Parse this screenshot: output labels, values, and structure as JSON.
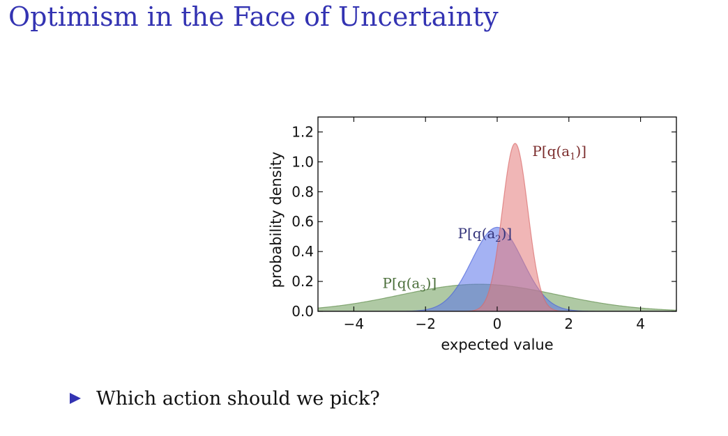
{
  "slide": {
    "title": "Optimism in the Face of Uncertainty",
    "bullet": "Which action should we pick?",
    "bullet_icon": "triangle-right-icon",
    "title_color": "#3333b2"
  },
  "chart_data": {
    "type": "area",
    "title": "",
    "xlabel": "expected value",
    "ylabel": "probability density",
    "xlim": [
      -5,
      5
    ],
    "ylim": [
      0,
      1.3
    ],
    "xticks": [
      -4,
      -2,
      0,
      2,
      4
    ],
    "yticks": [
      0.0,
      0.2,
      0.4,
      0.6,
      0.8,
      1.0,
      1.2
    ],
    "grid": false,
    "series": [
      {
        "key": "a3",
        "label_text": "P[q(a3)]",
        "label_prefix": "P[q(a",
        "label_sub": "3",
        "label_suffix": ")]",
        "distribution": "normal",
        "mean": -0.5,
        "std": 2.2,
        "fill_color": "#6e9d5a",
        "line_color": "#5f8d4c",
        "label_color": "#4a6e3a",
        "label_at": [
          -3.2,
          0.155
        ]
      },
      {
        "key": "a2",
        "label_text": "P[q(a2)]",
        "label_prefix": "P[q(a",
        "label_sub": "2",
        "label_suffix": ")]",
        "distribution": "normal",
        "mean": 0.0,
        "std": 0.71,
        "fill_color": "#5a72ea",
        "line_color": "#4a62da",
        "label_color": "#33337a",
        "label_at": [
          -1.1,
          0.49
        ]
      },
      {
        "key": "a1",
        "label_text": "P[q(a1)]",
        "label_prefix": "P[q(a",
        "label_sub": "1",
        "label_suffix": ")]",
        "distribution": "normal",
        "mean": 0.5,
        "std": 0.355,
        "fill_color": "#e47a7a",
        "line_color": "#d86a6a",
        "label_color": "#7a2b2b",
        "label_at": [
          0.98,
          1.04
        ]
      }
    ]
  }
}
